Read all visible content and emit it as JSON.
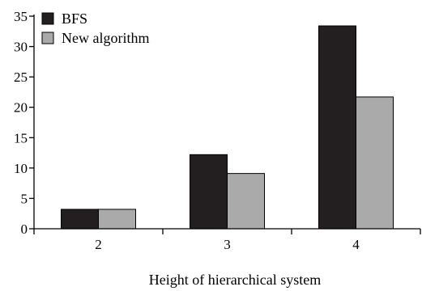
{
  "chart_data": {
    "type": "bar",
    "categories": [
      "2",
      "3",
      "4"
    ],
    "series": [
      {
        "name": "BFS",
        "values": [
          3.2,
          12.2,
          33.4
        ],
        "color": "#231f20"
      },
      {
        "name": "New algorithm",
        "values": [
          3.2,
          9.1,
          21.7
        ],
        "color": "#aaaaaa"
      }
    ],
    "title": "",
    "xlabel": "Height of hierarchical system",
    "ylabel": "",
    "ylim": [
      0,
      35
    ],
    "yticks": [
      0,
      5,
      10,
      15,
      20,
      25,
      30,
      35
    ],
    "grid": false,
    "legend_position": "top-left"
  }
}
